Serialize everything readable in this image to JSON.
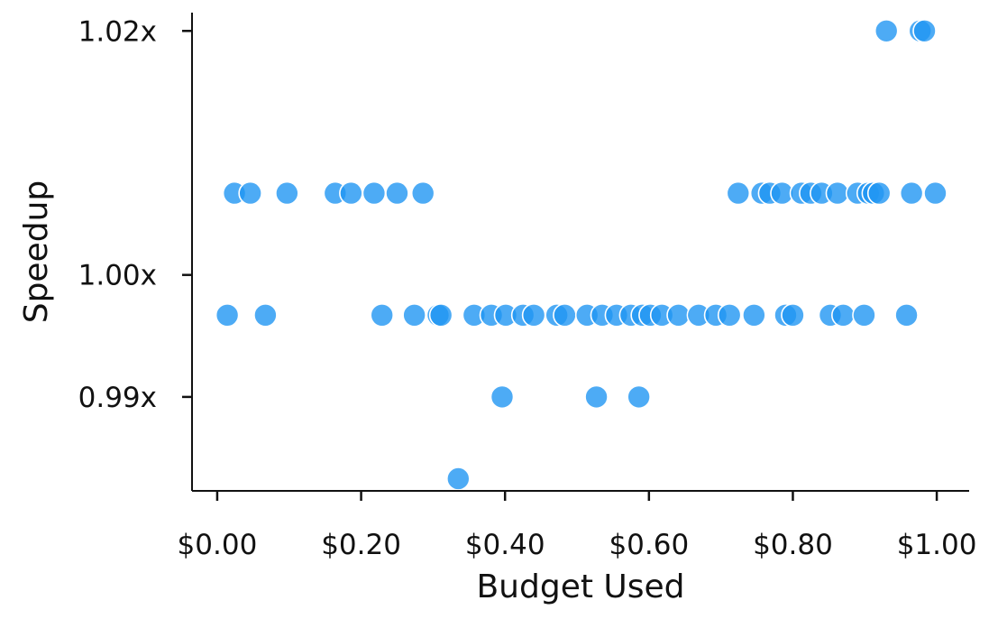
{
  "chart_data": {
    "type": "scatter",
    "title": "",
    "xlabel": "Budget Used",
    "ylabel": "Speedup",
    "xlim": [
      -0.035,
      1.045
    ],
    "ylim": [
      0.9823,
      1.0215
    ],
    "xticks": [
      0.0,
      0.2,
      0.4,
      0.6,
      0.8,
      1.0
    ],
    "xtick_labels": [
      "$0.00",
      "$0.20",
      "$0.40",
      "$0.60",
      "$0.80",
      "$1.00"
    ],
    "yticks": [
      0.99,
      1.0,
      1.02
    ],
    "ytick_labels": [
      "0.99x",
      "1.00x",
      "1.02x"
    ],
    "grid": false,
    "legend": "none",
    "point_color": "#2196F3",
    "points": [
      {
        "x": 0.93,
        "y": 1.02
      },
      {
        "x": 0.977,
        "y": 1.02
      },
      {
        "x": 0.983,
        "y": 1.02
      },
      {
        "x": 0.024,
        "y": 1.0067
      },
      {
        "x": 0.046,
        "y": 1.0067
      },
      {
        "x": 0.097,
        "y": 1.0067
      },
      {
        "x": 0.164,
        "y": 1.0067
      },
      {
        "x": 0.186,
        "y": 1.0067
      },
      {
        "x": 0.218,
        "y": 1.0067
      },
      {
        "x": 0.25,
        "y": 1.0067
      },
      {
        "x": 0.286,
        "y": 1.0067
      },
      {
        "x": 0.724,
        "y": 1.0067
      },
      {
        "x": 0.757,
        "y": 1.0067
      },
      {
        "x": 0.768,
        "y": 1.0067
      },
      {
        "x": 0.785,
        "y": 1.0067
      },
      {
        "x": 0.812,
        "y": 1.0067
      },
      {
        "x": 0.825,
        "y": 1.0067
      },
      {
        "x": 0.84,
        "y": 1.0067
      },
      {
        "x": 0.862,
        "y": 1.0067
      },
      {
        "x": 0.89,
        "y": 1.0067
      },
      {
        "x": 0.905,
        "y": 1.0067
      },
      {
        "x": 0.912,
        "y": 1.0067
      },
      {
        "x": 0.92,
        "y": 1.0067
      },
      {
        "x": 0.965,
        "y": 1.0067
      },
      {
        "x": 0.998,
        "y": 1.0067
      },
      {
        "x": 0.014,
        "y": 0.9967
      },
      {
        "x": 0.067,
        "y": 0.9967
      },
      {
        "x": 0.229,
        "y": 0.9967
      },
      {
        "x": 0.274,
        "y": 0.9967
      },
      {
        "x": 0.307,
        "y": 0.9967
      },
      {
        "x": 0.311,
        "y": 0.9967
      },
      {
        "x": 0.357,
        "y": 0.9967
      },
      {
        "x": 0.381,
        "y": 0.9967
      },
      {
        "x": 0.401,
        "y": 0.9967
      },
      {
        "x": 0.425,
        "y": 0.9967
      },
      {
        "x": 0.44,
        "y": 0.9967
      },
      {
        "x": 0.472,
        "y": 0.9967
      },
      {
        "x": 0.483,
        "y": 0.9967
      },
      {
        "x": 0.514,
        "y": 0.9967
      },
      {
        "x": 0.535,
        "y": 0.9967
      },
      {
        "x": 0.555,
        "y": 0.9967
      },
      {
        "x": 0.575,
        "y": 0.9967
      },
      {
        "x": 0.591,
        "y": 0.9967
      },
      {
        "x": 0.602,
        "y": 0.9967
      },
      {
        "x": 0.618,
        "y": 0.9967
      },
      {
        "x": 0.641,
        "y": 0.9967
      },
      {
        "x": 0.669,
        "y": 0.9967
      },
      {
        "x": 0.693,
        "y": 0.9967
      },
      {
        "x": 0.712,
        "y": 0.9967
      },
      {
        "x": 0.746,
        "y": 0.9967
      },
      {
        "x": 0.79,
        "y": 0.9967
      },
      {
        "x": 0.8,
        "y": 0.9967
      },
      {
        "x": 0.852,
        "y": 0.9967
      },
      {
        "x": 0.87,
        "y": 0.9967
      },
      {
        "x": 0.899,
        "y": 0.9967
      },
      {
        "x": 0.958,
        "y": 0.9967
      },
      {
        "x": 0.396,
        "y": 0.99
      },
      {
        "x": 0.527,
        "y": 0.99
      },
      {
        "x": 0.586,
        "y": 0.99
      },
      {
        "x": 0.335,
        "y": 0.9833
      }
    ]
  }
}
